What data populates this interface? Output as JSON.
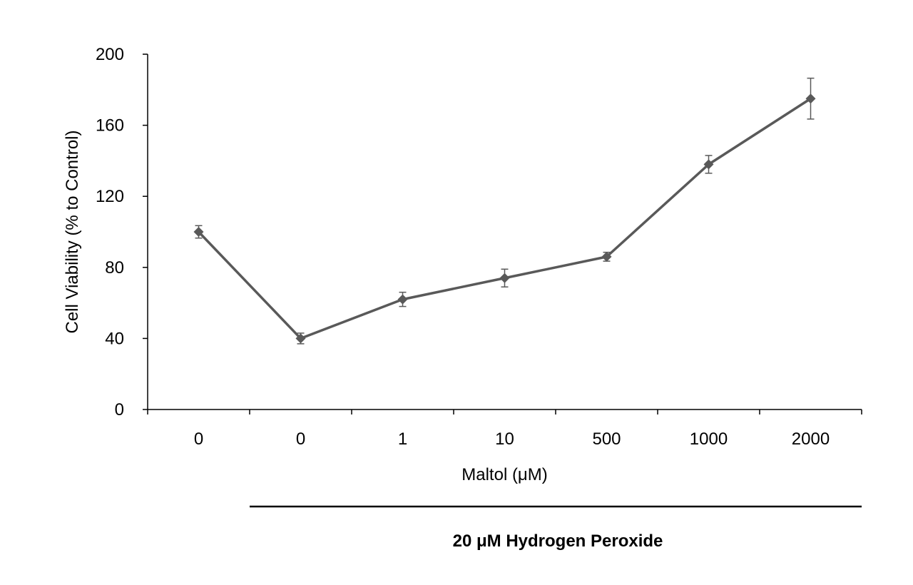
{
  "chart_data": {
    "type": "line",
    "title": "",
    "xlabel": "Maltol (μM)",
    "ylabel": "Cell Viability  (% to Control)",
    "categories": [
      "0",
      "0",
      "1",
      "10",
      "500",
      "1000",
      "2000"
    ],
    "series": [
      {
        "values": [
          100,
          40,
          62,
          74,
          86,
          138,
          175
        ],
        "errors": [
          3.5,
          3,
          4,
          5,
          2.5,
          5,
          11.5
        ]
      }
    ],
    "ylim": [
      0,
      200
    ],
    "yticks": [
      0,
      40,
      80,
      120,
      160,
      200
    ],
    "grid": false,
    "legend": "none",
    "group_annotation": {
      "label": "20 μM Hydrogen Peroxide",
      "start_category_index": 1,
      "end_category_index": 6
    },
    "colors": {
      "series": "#595959",
      "axis": "#000000"
    }
  }
}
